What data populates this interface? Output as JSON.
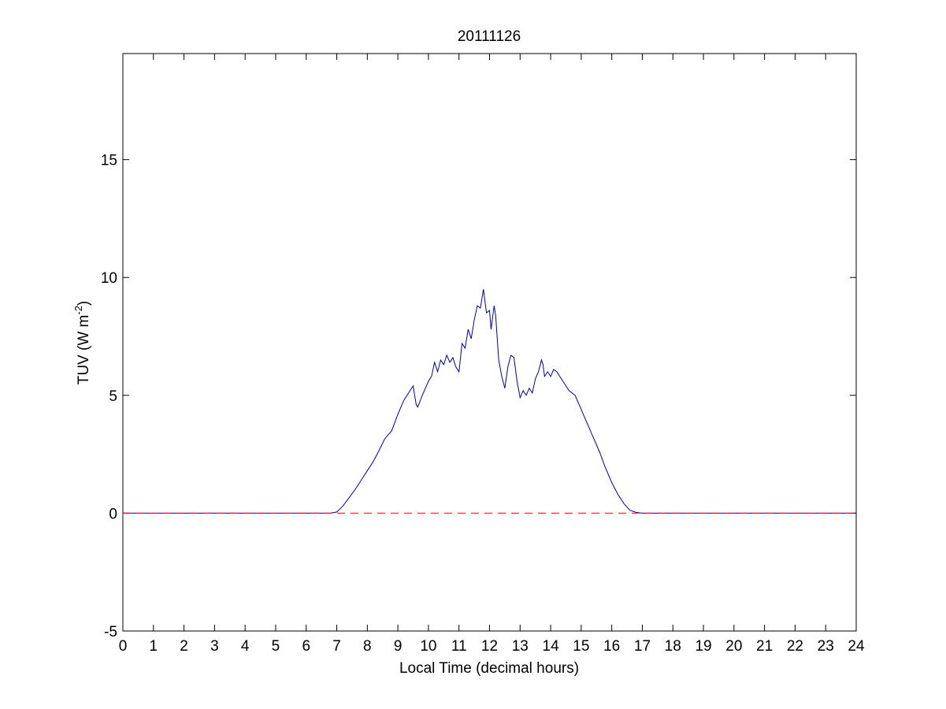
{
  "chart_data": {
    "type": "line",
    "title": "20111126",
    "xlabel": "Local Time (decimal hours)",
    "ylabel_base": "TUV (W m",
    "ylabel_sup": "-2",
    "ylabel_end": ")",
    "xlim": [
      0,
      24
    ],
    "ylim": [
      -5,
      19.5
    ],
    "x_ticks": [
      "0",
      "1",
      "2",
      "3",
      "4",
      "5",
      "6",
      "7",
      "8",
      "9",
      "10",
      "11",
      "12",
      "13",
      "14",
      "15",
      "16",
      "17",
      "18",
      "19",
      "20",
      "21",
      "22",
      "23",
      "24"
    ],
    "y_ticks": [
      "-5",
      "0",
      "5",
      "10",
      "15"
    ],
    "grid": false,
    "legend": "none",
    "series": [
      {
        "color": "#0000aa",
        "style": "solid",
        "x": [
          0,
          6.8,
          7.0,
          7.2,
          7.4,
          7.6,
          7.8,
          8.0,
          8.2,
          8.4,
          8.55,
          8.6,
          8.8,
          9.0,
          9.2,
          9.4,
          9.5,
          9.6,
          9.65,
          9.8,
          9.9,
          10.0,
          10.1,
          10.2,
          10.3,
          10.4,
          10.5,
          10.6,
          10.7,
          10.8,
          10.9,
          11.0,
          11.1,
          11.2,
          11.3,
          11.4,
          11.5,
          11.6,
          11.7,
          11.8,
          11.9,
          12.0,
          12.05,
          12.15,
          12.2,
          12.3,
          12.4,
          12.5,
          12.6,
          12.7,
          12.8,
          12.9,
          13.0,
          13.1,
          13.2,
          13.3,
          13.4,
          13.5,
          13.6,
          13.7,
          13.75,
          13.8,
          13.9,
          14.0,
          14.1,
          14.2,
          14.3,
          14.4,
          14.5,
          14.6,
          14.8,
          15.0,
          15.2,
          15.4,
          15.6,
          15.8,
          16.0,
          16.2,
          16.4,
          16.6,
          16.8,
          17.0,
          17.2,
          24
        ],
        "y": [
          0,
          0,
          0.05,
          0.3,
          0.65,
          1.0,
          1.4,
          1.8,
          2.2,
          2.7,
          3.1,
          3.2,
          3.5,
          4.2,
          4.8,
          5.2,
          5.4,
          4.6,
          4.5,
          5.0,
          5.3,
          5.6,
          5.8,
          6.4,
          6.0,
          6.5,
          6.3,
          6.7,
          6.4,
          6.6,
          6.2,
          6.0,
          7.2,
          7.0,
          7.8,
          7.4,
          8.2,
          8.8,
          8.7,
          9.5,
          8.5,
          8.6,
          7.8,
          8.8,
          8.4,
          6.5,
          5.8,
          5.3,
          6.2,
          6.7,
          6.6,
          5.6,
          4.9,
          5.2,
          5.0,
          5.3,
          5.1,
          5.7,
          6.0,
          6.5,
          6.3,
          5.8,
          6.0,
          5.8,
          6.1,
          6.0,
          5.8,
          5.6,
          5.4,
          5.2,
          5.0,
          4.4,
          3.8,
          3.2,
          2.6,
          1.9,
          1.3,
          0.8,
          0.4,
          0.12,
          0.03,
          0,
          0,
          0
        ]
      },
      {
        "color": "#ff0000",
        "style": "dashed",
        "x": [
          0,
          24
        ],
        "y": [
          0,
          0
        ]
      }
    ]
  }
}
